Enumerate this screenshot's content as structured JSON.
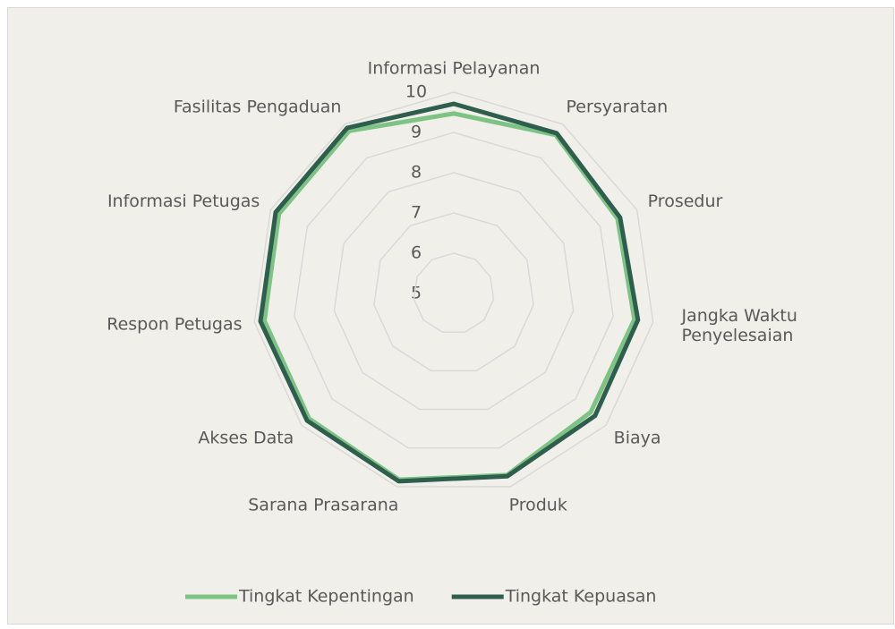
{
  "chart_data": {
    "type": "radar",
    "categories": [
      "Informasi Pelayanan",
      "Persyaratan",
      "Prosedur",
      "Jangka Waktu Penyelesaian",
      "Biaya",
      "Produk",
      "Sarana Prasarana",
      "Akses Data",
      "Respon Petugas",
      "Informasi Petugas",
      "Fasilitas Pengaduan"
    ],
    "series": [
      {
        "name": "Tingkat Kepentingan",
        "color": "#7dc383",
        "values": [
          9.47,
          9.68,
          9.47,
          9.53,
          9.5,
          9.7,
          9.82,
          9.75,
          9.75,
          9.77,
          9.8
        ]
      },
      {
        "name": "Tingkat Kepuasan",
        "color": "#2e5e4e",
        "values": [
          9.71,
          9.73,
          9.54,
          9.62,
          9.64,
          9.73,
          9.86,
          9.82,
          9.85,
          9.86,
          9.89
        ]
      }
    ],
    "ylim": [
      5,
      10
    ],
    "yticks": [
      5,
      6,
      7,
      8,
      9,
      10
    ],
    "grid": true,
    "legend": "bottom"
  }
}
